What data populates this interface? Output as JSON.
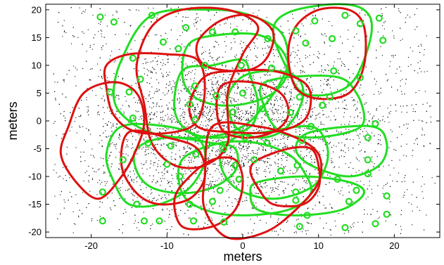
{
  "chart_data": {
    "type": "scatter",
    "title": "",
    "xlabel": "meters",
    "ylabel": "meters",
    "xlim": [
      -26,
      26
    ],
    "ylim": [
      -21,
      21
    ],
    "x_ticks": [
      -20,
      -10,
      0,
      10,
      20
    ],
    "y_ticks": [
      -20,
      -15,
      -10,
      -5,
      0,
      5,
      10,
      15,
      20
    ],
    "grid": false,
    "legend": "none",
    "colors": {
      "points": "#000000",
      "green_markers": "#22dd22",
      "green_regions": "#22dd22",
      "red_regions": "#dd1111"
    },
    "green_markers": [
      [
        -18.8,
        18.7
      ],
      [
        -17,
        17.8
      ],
      [
        -12,
        19
      ],
      [
        -7.5,
        16.8
      ],
      [
        -4,
        16
      ],
      [
        -1,
        16
      ],
      [
        7,
        16.2
      ],
      [
        9.5,
        18
      ],
      [
        13.5,
        19
      ],
      [
        15.5,
        17.5
      ],
      [
        18,
        18.5
      ],
      [
        -10.5,
        14.2
      ],
      [
        -8.5,
        13
      ],
      [
        3.3,
        14.8
      ],
      [
        8.3,
        14
      ],
      [
        11.8,
        14.8
      ],
      [
        18.5,
        14.5
      ],
      [
        -14.5,
        11.3
      ],
      [
        -5,
        10
      ],
      [
        -0.2,
        10
      ],
      [
        3.8,
        9.5
      ],
      [
        12,
        9
      ],
      [
        15.5,
        7.8
      ],
      [
        -17.5,
        5.2
      ],
      [
        -15,
        5.2
      ],
      [
        -13.5,
        7.5
      ],
      [
        -6.3,
        6.3
      ],
      [
        -3.5,
        4.5
      ],
      [
        0,
        5
      ],
      [
        7.5,
        4.3
      ],
      [
        11.5,
        4.3
      ],
      [
        -7,
        3
      ],
      [
        2.6,
        2.2
      ],
      [
        -6.3,
        0.2
      ],
      [
        -1.3,
        1.6
      ],
      [
        6.3,
        1.5
      ],
      [
        10.5,
        2.8
      ],
      [
        -14.5,
        0.5
      ],
      [
        9,
        -1
      ],
      [
        17.5,
        -0.5
      ],
      [
        -12.5,
        -4
      ],
      [
        -9.5,
        -4.5
      ],
      [
        -2.5,
        -5
      ],
      [
        0.3,
        -3
      ],
      [
        3.2,
        -4
      ],
      [
        7.8,
        -3.5
      ],
      [
        16.5,
        -3
      ],
      [
        -15.8,
        -7
      ],
      [
        -10,
        -7.8
      ],
      [
        -6.2,
        -6
      ],
      [
        -1,
        -8
      ],
      [
        1.5,
        -7
      ],
      [
        5,
        -9
      ],
      [
        7.2,
        -8
      ],
      [
        16.5,
        -7
      ],
      [
        -8.3,
        -10
      ],
      [
        -0.5,
        -10.5
      ],
      [
        12.5,
        -10.5
      ],
      [
        16.5,
        -9.5
      ],
      [
        -18.5,
        -12.8
      ],
      [
        -3,
        -12.5
      ],
      [
        7,
        -12.8
      ],
      [
        15,
        -12.5
      ],
      [
        19,
        -13.5
      ],
      [
        -14,
        -15
      ],
      [
        -7,
        -15
      ],
      [
        -4,
        -14.5
      ],
      [
        7,
        -14.3
      ],
      [
        14,
        -14.5
      ],
      [
        -18.5,
        -18
      ],
      [
        -13,
        -18
      ],
      [
        -11,
        -18
      ],
      [
        -6.5,
        -18
      ],
      [
        -2.5,
        -18.2
      ],
      [
        8.5,
        -17
      ],
      [
        7.5,
        -19
      ],
      [
        13.5,
        -19.2
      ],
      [
        17.5,
        -18.5
      ],
      [
        19,
        -16.8
      ]
    ],
    "green_regions": [
      [
        [
          -16,
          11
        ],
        [
          -12,
          19
        ],
        [
          -4,
          20
        ],
        [
          1,
          19
        ],
        [
          5,
          16
        ],
        [
          6,
          11
        ],
        [
          5,
          7
        ],
        [
          3,
          3
        ],
        [
          0,
          -1
        ],
        [
          -5,
          -3
        ],
        [
          -11,
          -2.5
        ],
        [
          -15,
          0
        ],
        [
          -17,
          4
        ]
      ],
      [
        [
          -7,
          14
        ],
        [
          -3,
          15.5
        ],
        [
          2,
          15.5
        ],
        [
          5,
          13
        ],
        [
          6,
          9
        ],
        [
          4,
          5
        ],
        [
          0,
          3
        ],
        [
          -4,
          3
        ],
        [
          -7,
          5
        ],
        [
          -8,
          9
        ]
      ],
      [
        [
          -8,
          9
        ],
        [
          -4,
          10
        ],
        [
          0,
          11
        ],
        [
          1,
          8
        ],
        [
          2,
          3
        ],
        [
          1,
          -1
        ],
        [
          -3,
          -3
        ],
        [
          -7,
          -2
        ],
        [
          -9,
          2
        ]
      ],
      [
        [
          0,
          8
        ],
        [
          4,
          9
        ],
        [
          7,
          8
        ],
        [
          8,
          5
        ],
        [
          7,
          1
        ],
        [
          5,
          -2
        ],
        [
          2,
          -3
        ],
        [
          -1,
          -1
        ],
        [
          -2,
          4
        ]
      ],
      [
        [
          4,
          16
        ],
        [
          6,
          19.5
        ],
        [
          12,
          21
        ],
        [
          16,
          20
        ],
        [
          17,
          16
        ],
        [
          15,
          8
        ],
        [
          12,
          5
        ],
        [
          8,
          5
        ],
        [
          6,
          9
        ]
      ],
      [
        [
          3,
          7
        ],
        [
          12,
          8
        ],
        [
          15,
          5
        ],
        [
          16,
          0
        ],
        [
          14,
          -2
        ],
        [
          9,
          -3
        ],
        [
          5,
          -2
        ],
        [
          3,
          2
        ]
      ],
      [
        [
          9,
          -2
        ],
        [
          17,
          -1
        ],
        [
          19,
          -4
        ],
        [
          18,
          -8
        ],
        [
          14,
          -10
        ],
        [
          9,
          -8
        ],
        [
          7,
          -5
        ]
      ],
      [
        [
          3,
          -2
        ],
        [
          9,
          -1
        ],
        [
          11,
          -4
        ],
        [
          11,
          -8
        ],
        [
          9,
          -12
        ],
        [
          4,
          -14
        ],
        [
          -1,
          -12
        ],
        [
          -3,
          -7
        ],
        [
          -1,
          -3
        ]
      ],
      [
        [
          -4,
          -4
        ],
        [
          -1,
          -5
        ],
        [
          -1,
          -9
        ],
        [
          -4,
          -12
        ],
        [
          -8,
          -13
        ],
        [
          -12,
          -12
        ],
        [
          -14,
          -9
        ],
        [
          -14,
          -5
        ],
        [
          -10,
          -3
        ]
      ],
      [
        [
          -16,
          -1
        ],
        [
          -10,
          -1
        ],
        [
          -6,
          -3
        ],
        [
          -5,
          -7
        ],
        [
          -7,
          -12
        ],
        [
          -11,
          -15
        ],
        [
          -15,
          -15
        ],
        [
          -17,
          -11
        ],
        [
          -18,
          -6
        ]
      ],
      [
        [
          -8,
          -7
        ],
        [
          -3,
          -4
        ],
        [
          2,
          -4
        ],
        [
          6,
          -6
        ],
        [
          8,
          -9
        ],
        [
          9,
          -13
        ],
        [
          6,
          -16
        ],
        [
          0,
          -17
        ],
        [
          -5,
          -16
        ],
        [
          -8,
          -13
        ]
      ],
      [
        [
          2,
          -11
        ],
        [
          8,
          -10
        ],
        [
          14,
          -11
        ],
        [
          16,
          -13
        ],
        [
          13,
          -16
        ],
        [
          7,
          -17
        ],
        [
          2,
          -16
        ],
        [
          1,
          -13
        ]
      ]
    ],
    "red_regions": [
      [
        [
          -21,
          5
        ],
        [
          -17,
          7
        ],
        [
          -14,
          5
        ],
        [
          -13,
          0
        ],
        [
          -14,
          -5
        ],
        [
          -16,
          -10
        ],
        [
          -19,
          -14
        ],
        [
          -22,
          -11
        ],
        [
          -24,
          -6
        ],
        [
          -23,
          -1
        ]
      ],
      [
        [
          -18,
          10
        ],
        [
          -15,
          12
        ],
        [
          -10,
          12
        ],
        [
          -6,
          11
        ],
        [
          -5,
          6
        ],
        [
          -6,
          0
        ],
        [
          -9,
          -2
        ],
        [
          -14,
          -2
        ],
        [
          -17,
          1
        ],
        [
          -18,
          6
        ]
      ],
      [
        [
          -12,
          17
        ],
        [
          -8,
          20
        ],
        [
          -2,
          20
        ],
        [
          2,
          17
        ],
        [
          0,
          12
        ],
        [
          -2,
          5
        ],
        [
          -2,
          -4
        ],
        [
          -5,
          -8
        ],
        [
          -9,
          -8
        ],
        [
          -12,
          -4
        ],
        [
          -13,
          3
        ],
        [
          -14,
          10
        ]
      ],
      [
        [
          -5,
          8
        ],
        [
          -1,
          9
        ],
        [
          4,
          9
        ],
        [
          8,
          7
        ],
        [
          9,
          4
        ],
        [
          8,
          0
        ],
        [
          4,
          -2
        ],
        [
          -2,
          -2
        ],
        [
          -6,
          -1
        ],
        [
          -7,
          3
        ]
      ],
      [
        [
          -6,
          14
        ],
        [
          -3,
          18
        ],
        [
          1,
          19
        ],
        [
          4,
          16
        ],
        [
          3,
          11
        ],
        [
          0,
          9
        ],
        [
          -5,
          10
        ]
      ],
      [
        [
          -3,
          6
        ],
        [
          1,
          7
        ],
        [
          5,
          5
        ],
        [
          6,
          1
        ],
        [
          4,
          -2
        ],
        [
          0,
          -3
        ],
        [
          -3,
          -1
        ]
      ],
      [
        [
          7,
          17
        ],
        [
          10,
          20
        ],
        [
          14,
          20
        ],
        [
          16,
          17
        ],
        [
          16,
          10
        ],
        [
          14,
          5
        ],
        [
          10,
          4
        ],
        [
          7,
          6
        ],
        [
          6,
          12
        ]
      ],
      [
        [
          -15,
          -2
        ],
        [
          -10,
          -3
        ],
        [
          -6,
          -5
        ],
        [
          -5,
          -10
        ],
        [
          -7,
          -14
        ],
        [
          -11,
          -15
        ],
        [
          -14,
          -13
        ],
        [
          -16,
          -8
        ]
      ],
      [
        [
          -4,
          -1
        ],
        [
          2,
          -1
        ],
        [
          7,
          -3
        ],
        [
          10,
          -6
        ],
        [
          10,
          -11
        ],
        [
          7,
          -16
        ],
        [
          3,
          -20
        ],
        [
          -2,
          -21
        ],
        [
          -5,
          -16
        ],
        [
          -5,
          -10
        ]
      ],
      [
        [
          -4,
          -7
        ],
        [
          -1,
          -7
        ],
        [
          0,
          -11
        ],
        [
          -1,
          -16
        ],
        [
          -4,
          -19
        ],
        [
          -8,
          -19
        ],
        [
          -9,
          -14
        ],
        [
          -7,
          -10
        ]
      ],
      [
        [
          2,
          -7
        ],
        [
          6,
          -5
        ],
        [
          9,
          -5
        ],
        [
          10,
          -8
        ],
        [
          10,
          -12
        ],
        [
          8,
          -15
        ],
        [
          4,
          -15
        ],
        [
          2,
          -12
        ],
        [
          1,
          -9
        ]
      ]
    ]
  }
}
